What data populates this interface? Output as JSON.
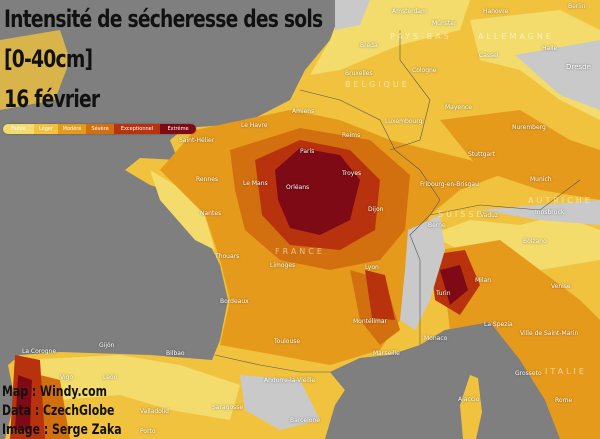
{
  "title": {
    "line1": "Intensité de sécheresse des sols",
    "line2": "[0-40cm]",
    "line3": "16 février"
  },
  "legend": [
    {
      "label": "Faible",
      "color": "#f3dc6b"
    },
    {
      "label": "Léger",
      "color": "#f0c23e"
    },
    {
      "label": "Modéré",
      "color": "#e69a1c"
    },
    {
      "label": "Sévère",
      "color": "#d2700f"
    },
    {
      "label": "Exceptionnel",
      "color": "#b8320e"
    },
    {
      "label": "Extrême",
      "color": "#7d0a14"
    }
  ],
  "colors": {
    "sea": "#7f7f7f",
    "no_data_land": "#c9c9c9"
  },
  "countries": [
    "FRANCE",
    "ALLEMAGNE",
    "BELGIQUE",
    "PAYS-BAS",
    "SUISSE",
    "AUTRICHE",
    "ITALIE"
  ],
  "cities": [
    "Amsterdam",
    "Hanovre",
    "Berlin",
    "Münster",
    "Halle",
    "Bréda",
    "Cassel",
    "Bruxelles",
    "Cologne",
    "Dresde",
    "Amiens",
    "Mayence",
    "Le Havre",
    "Luxembourg",
    "Reims",
    "Nuremberg",
    "Saint-Hélier",
    "Paris",
    "Stuttgart",
    "Troyes",
    "Rennes",
    "Le Mans",
    "Orléans",
    "Fribourg-en-Brisgau",
    "Munich",
    "Nantes",
    "Dijon",
    "Berne",
    "Vaduz",
    "Innsbruck",
    "Bolzano",
    "Thouars",
    "Limoges",
    "Lyon",
    "Milan",
    "Venise",
    "Bordeaux",
    "Turin",
    "Montélimar",
    "La Spezia",
    "Ville de Saint-Marin",
    "Toulouse",
    "Monaco",
    "Marseille",
    "La Corogne",
    "Gijón",
    "Bilbao",
    "León",
    "Andorre-la-Vieille",
    "Grosseto",
    "Vigo",
    "Valladolid",
    "Saragosse",
    "Ajaccio",
    "Barcelone",
    "Rome",
    "Porto"
  ],
  "credits": {
    "map": "Map : Windy.com",
    "data": "Data : CzechGlobe",
    "image": "Image : Serge Zaka"
  }
}
